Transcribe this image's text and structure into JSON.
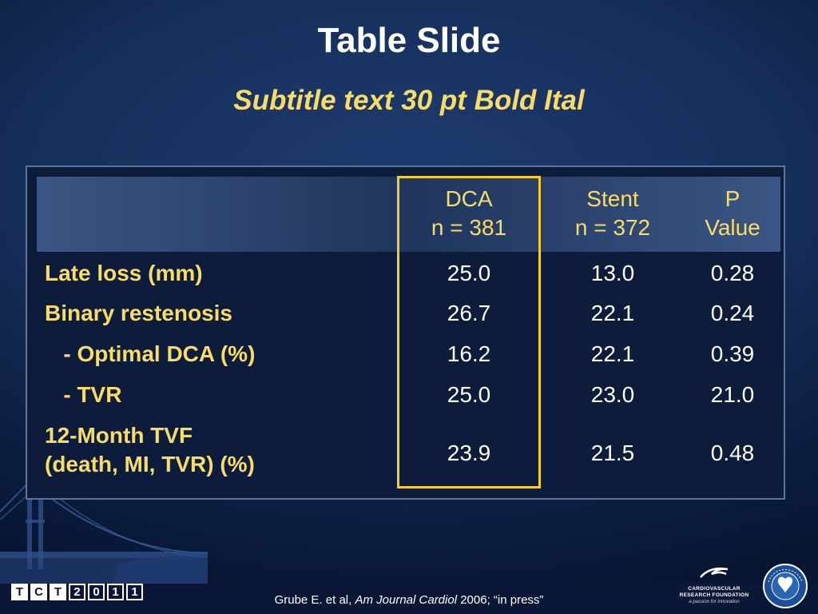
{
  "slide": {
    "title": "Table Slide",
    "subtitle": "Subtitle text 30 pt Bold Ital"
  },
  "table": {
    "columns": [
      {
        "line1": "DCA",
        "line2": "n = 381"
      },
      {
        "line1": "Stent",
        "line2": "n = 372"
      },
      {
        "line1": "P",
        "line2": "Value"
      }
    ],
    "rows": [
      {
        "label": "Late loss (mm)",
        "values": [
          "25.0",
          "13.0",
          "0.28"
        ]
      },
      {
        "label": "Binary restenosis",
        "values": [
          "26.7",
          "22.1",
          "0.24"
        ]
      },
      {
        "label": "   - Optimal DCA (%)",
        "values": [
          "16.2",
          "22.1",
          "0.39"
        ]
      },
      {
        "label": "   - TVR",
        "values": [
          "25.0",
          "23.0",
          "21.0"
        ]
      },
      {
        "label_line1": "12-Month TVF",
        "label_line2": "(death, MI, TVR) (%)",
        "values": [
          "23.9",
          "21.5",
          "0.48"
        ]
      }
    ]
  },
  "footer": {
    "tct_logo": [
      "T",
      "C",
      "T",
      "2",
      "0",
      "1",
      "1"
    ],
    "citation_authors": "Grube E. et al,",
    "citation_journal": "Am Journal Cardiol",
    "citation_rest": "2006; “in press”",
    "crf_name_line1": "CARDIOVASCULAR",
    "crf_name_line2": "RESEARCH FOUNDATION",
    "crf_tagline": "a passion for innovation",
    "acc_logo_text": "AMERICAN COLLEGE of CARDIOLOGY"
  },
  "colors": {
    "title": "#ffffff",
    "subtitle": "#f7dc6a",
    "highlight_box": "#f4cc33",
    "background": "#16305d"
  }
}
